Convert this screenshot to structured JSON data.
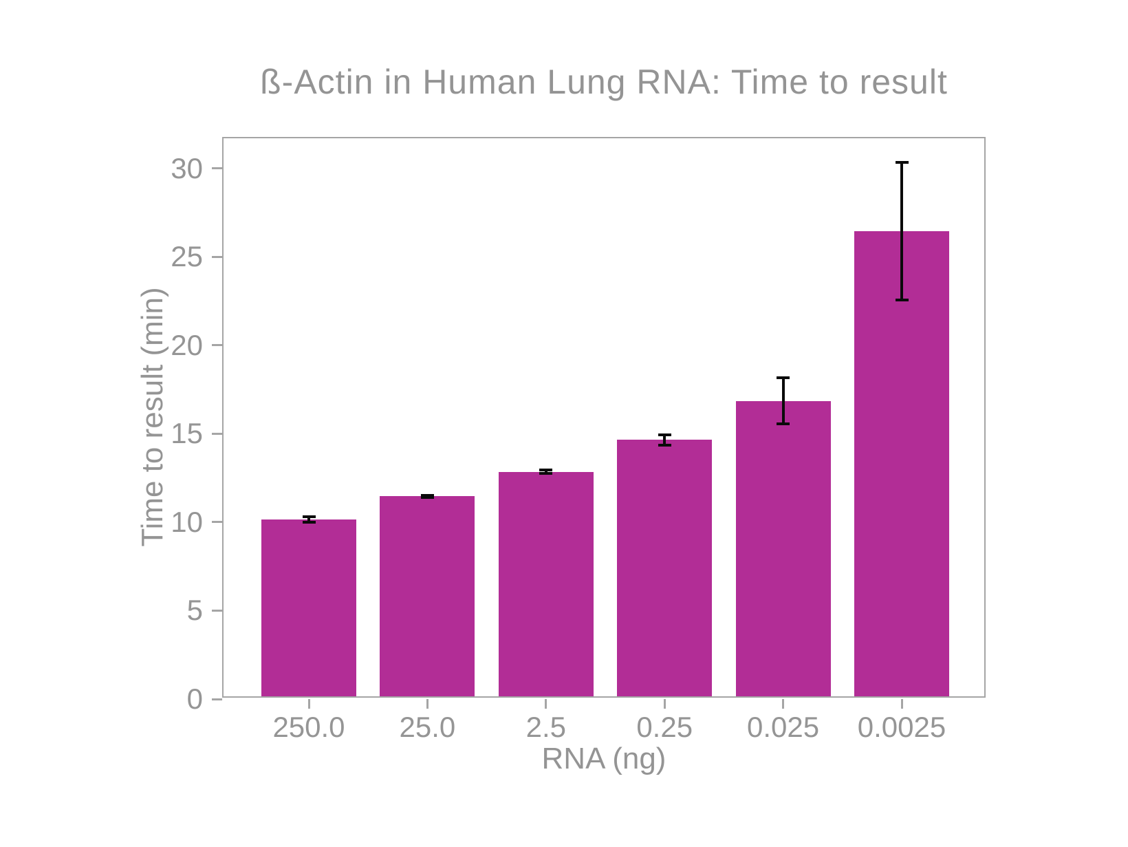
{
  "title": "ß-Actin in Human Lung RNA: Time to result",
  "colors": {
    "bar": "#b22d96",
    "error": "#0a0a0a",
    "axis": "#a5a5a5",
    "text": "#949494"
  },
  "chart_data": {
    "type": "bar",
    "title": "ß-Actin in Human Lung RNA: Time to result",
    "xlabel": "RNA (ng)",
    "ylabel": "Time to result (min)",
    "categories": [
      "250.0",
      "25.0",
      "2.5",
      "0.25",
      "0.025",
      "0.0025"
    ],
    "values": [
      10.0,
      11.3,
      12.7,
      14.5,
      16.7,
      26.3
    ],
    "errors": [
      0.15,
      0.07,
      0.08,
      0.3,
      1.3,
      3.9
    ],
    "ylim": [
      0,
      31.7
    ],
    "yticks": [
      0,
      5,
      10,
      15,
      20,
      25,
      30
    ],
    "grid": false,
    "legend": false,
    "bar_color": "#b22d96",
    "error_color": "#0a0a0a"
  }
}
